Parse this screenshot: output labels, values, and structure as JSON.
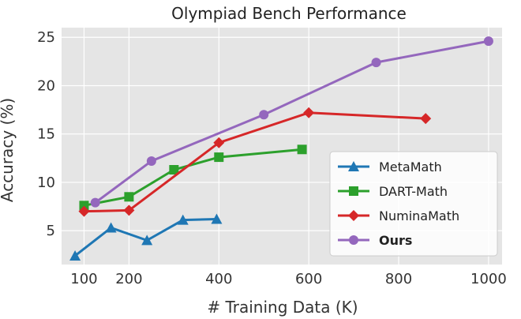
{
  "chart_data": {
    "type": "line",
    "title": "Olympiad Bench Performance",
    "xlabel": "# Training Data (K)",
    "ylabel": "Accuracy (%)",
    "xlim": [
      50,
      1030
    ],
    "ylim": [
      1.5,
      26
    ],
    "xticks": [
      100,
      200,
      400,
      600,
      800,
      1000
    ],
    "yticks": [
      5,
      10,
      15,
      20,
      25
    ],
    "grid": true,
    "legend_position": "lower-right",
    "series": [
      {
        "name": "MetaMath",
        "color": "#1f77b4",
        "marker": "triangle",
        "bold": false,
        "x": [
          80,
          160,
          240,
          320,
          395
        ],
        "y": [
          2.4,
          5.3,
          4.0,
          6.1,
          6.2
        ]
      },
      {
        "name": "DART-Math",
        "color": "#2ca02c",
        "marker": "square",
        "bold": false,
        "x": [
          100,
          200,
          300,
          400,
          585
        ],
        "y": [
          7.6,
          8.5,
          11.3,
          12.6,
          13.4
        ]
      },
      {
        "name": "NuminaMath",
        "color": "#d62728",
        "marker": "diamond",
        "bold": false,
        "x": [
          100,
          200,
          400,
          600,
          860
        ],
        "y": [
          7.0,
          7.1,
          14.1,
          17.2,
          16.6
        ]
      },
      {
        "name": "Ours",
        "color": "#9467bd",
        "marker": "circle",
        "bold": true,
        "x": [
          125,
          250,
          500,
          750,
          1000
        ],
        "y": [
          7.9,
          12.2,
          17.0,
          22.4,
          24.6
        ]
      }
    ]
  }
}
